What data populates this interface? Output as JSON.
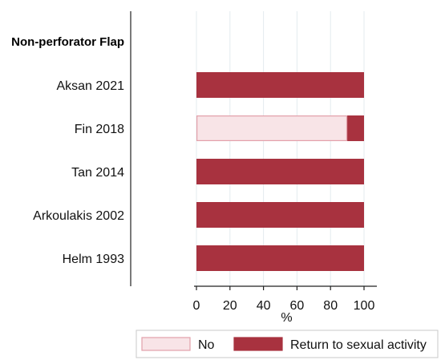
{
  "chart_data": {
    "type": "bar",
    "orientation": "horizontal",
    "stacked": true,
    "group_label": "Non-perforator Flap",
    "categories": [
      "Aksan 2021",
      "Fin 2018",
      "Tan 2014",
      "Arkoulakis 2002",
      "Helm 1993"
    ],
    "series": [
      {
        "name": "No",
        "values": [
          0,
          90,
          0,
          0,
          0
        ],
        "color": "#f8e4e7",
        "border": "#e2a0aa"
      },
      {
        "name": "Return to sexual activity",
        "values": [
          100,
          10,
          100,
          100,
          100
        ],
        "color": "#a8323f"
      }
    ],
    "xlabel": "%",
    "xlim": [
      0,
      100
    ],
    "x_ticks": [
      0,
      20,
      40,
      60,
      80,
      100
    ],
    "grid": "vertical",
    "legend": "bottom"
  }
}
